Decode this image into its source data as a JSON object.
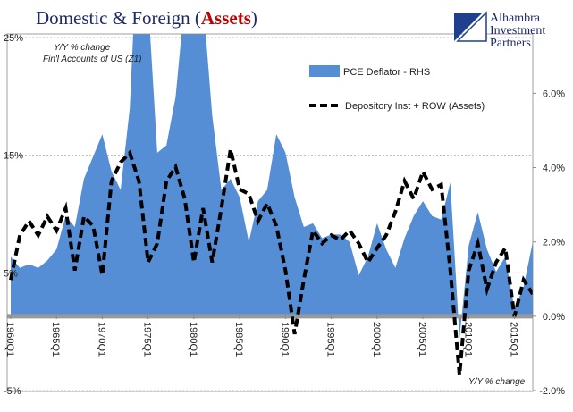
{
  "chart_data": {
    "type": "area-line",
    "title": [
      "Domestic & Foreign (",
      "Assets",
      ")"
    ],
    "annotations": [
      "Y/Y % change",
      "Fin'l Accounts of US (Z1)",
      "Y/Y % change"
    ],
    "logo": [
      "Alhambra",
      "Investment",
      "Partners"
    ],
    "x": [
      1960,
      1961,
      1962,
      1963,
      1964,
      1965,
      1966,
      1967,
      1968,
      1969,
      1970,
      1971,
      1972,
      1973,
      1974,
      1975,
      1976,
      1977,
      1978,
      1979,
      1980,
      1981,
      1982,
      1983,
      1984,
      1985,
      1986,
      1987,
      1988,
      1989,
      1990,
      1991,
      1992,
      1993,
      1994,
      1995,
      1996,
      1997,
      1998,
      1999,
      2000,
      2001,
      2002,
      2003,
      2004,
      2005,
      2006,
      2007,
      2008,
      2009,
      2010,
      2011,
      2012,
      2013,
      2014,
      2015,
      2016,
      2017
    ],
    "xlim": [
      1960,
      2017
    ],
    "xticks": [
      {
        "value": 1960,
        "label": "1960Q1"
      },
      {
        "value": 1965,
        "label": "1965Q1"
      },
      {
        "value": 1970,
        "label": "1970Q1"
      },
      {
        "value": 1975,
        "label": "1975Q1"
      },
      {
        "value": 1980,
        "label": "1980Q1"
      },
      {
        "value": 1985,
        "label": "1985Q1"
      },
      {
        "value": 1990,
        "label": "1990Q1"
      },
      {
        "value": 1995,
        "label": "1995Q1"
      },
      {
        "value": 2000,
        "label": "2000Q1"
      },
      {
        "value": 2005,
        "label": "2005Q1"
      },
      {
        "value": 2010,
        "label": "2010Q1"
      },
      {
        "value": 2015,
        "label": "2015Q1"
      }
    ],
    "ylim": [
      -5,
      25
    ],
    "yticks": [
      {
        "value": -5,
        "label": "-5%"
      },
      {
        "value": 5,
        "label": "5%"
      },
      {
        "value": 15,
        "label": "15%"
      },
      {
        "value": 25,
        "label": "25%"
      }
    ],
    "y2lim": [
      -2,
      7.5
    ],
    "y2ticks": [
      {
        "value": -2,
        "label": "-2.0%"
      },
      {
        "value": 0,
        "label": "0.0%"
      },
      {
        "value": 2,
        "label": "2.0%"
      },
      {
        "value": 4,
        "label": "4.0%"
      },
      {
        "value": 6,
        "label": "6.0%"
      }
    ],
    "grid": true,
    "series": [
      {
        "name": "PCE Deflator - RHS",
        "color": "#558ed5",
        "axis": "y2",
        "kind": "area",
        "values": [
          1.6,
          1.3,
          1.4,
          1.3,
          1.5,
          1.8,
          2.7,
          2.4,
          3.7,
          4.3,
          4.9,
          3.9,
          3.4,
          5.6,
          11,
          8.5,
          4.4,
          4.6,
          5.9,
          8.5,
          10.5,
          8.5,
          5.4,
          3.4,
          3.7,
          3.2,
          2.0,
          3.1,
          3.4,
          4.9,
          4.4,
          3.2,
          2.4,
          2.5,
          2.1,
          2.2,
          2.2,
          2.0,
          1.1,
          1.6,
          2.5,
          1.8,
          1.3,
          2.1,
          2.7,
          3.1,
          2.7,
          2.6,
          3.6,
          -0.6,
          1.9,
          2.8,
          1.8,
          1.2,
          1.6,
          0.2,
          0.8,
          2.0
        ]
      },
      {
        "name": "Depository Inst + ROW (Assets)",
        "color": "#000000",
        "kind": "line",
        "values": [
          4.4,
          8.2,
          9.4,
          8.2,
          9.8,
          8.6,
          10.5,
          5.2,
          9.8,
          9.0,
          4.8,
          12.8,
          14.4,
          15.2,
          12.8,
          5.9,
          7.5,
          12.8,
          14.0,
          11.3,
          5.9,
          10.5,
          5.9,
          10.5,
          15.5,
          12.1,
          11.7,
          9.4,
          10.9,
          9.0,
          5.2,
          -0.2,
          4.4,
          8.6,
          7.5,
          8.2,
          7.8,
          8.6,
          7.5,
          5.9,
          7.1,
          8.2,
          10.2,
          12.8,
          11.3,
          13.6,
          12.1,
          12.5,
          5.2,
          -3.7,
          5.2,
          7.5,
          3.6,
          5.9,
          7.1,
          1.3,
          4.4,
          3.2
        ]
      }
    ]
  }
}
